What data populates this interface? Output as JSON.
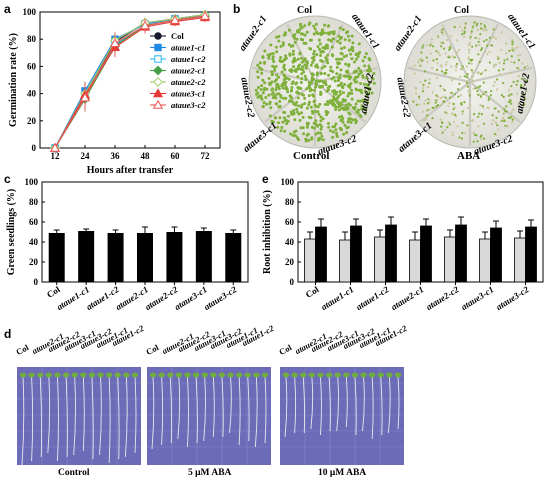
{
  "panels": {
    "a": "a",
    "b": "b",
    "c": "c",
    "d": "d",
    "e": "e"
  },
  "lines": [
    "Col",
    "ataue1-c1",
    "ataue1-c2",
    "ataue2-c1",
    "ataue2-c2",
    "ataue3-c1",
    "ataue3-c2"
  ],
  "colors": {
    "Col": "#1a1a2e",
    "ataue1-c1": "#1e88e5",
    "ataue1-c2": "#29b6f6",
    "ataue2-c1": "#43a047",
    "ataue2-c2": "#9ccc65",
    "ataue3-c1": "#e53935",
    "ataue3-c2": "#ef5350",
    "bar_light": "#d9d9d9",
    "bar_dark": "#000000",
    "plate_bg": "#f2f2ee",
    "plate_green": "#7fb03a",
    "gel_bg": "#6b6bb8"
  },
  "chart_data": [
    {
      "type": "line",
      "panel": "a",
      "xlabel": "Hours after transfer",
      "ylabel": "Germination rate (%)",
      "x": [
        12,
        24,
        36,
        48,
        60,
        72
      ],
      "ylim": [
        0,
        100
      ],
      "yticks": [
        0,
        20,
        40,
        60,
        80,
        100
      ],
      "series": [
        {
          "name": "Col",
          "values": [
            0,
            40,
            78,
            92,
            95,
            98
          ],
          "marker": "circle-filled"
        },
        {
          "name": "ataue1-c1",
          "values": [
            0,
            42,
            80,
            91,
            95,
            97
          ],
          "marker": "square-filled"
        },
        {
          "name": "ataue1-c2",
          "values": [
            0,
            38,
            76,
            90,
            94,
            97
          ],
          "marker": "square-open"
        },
        {
          "name": "ataue2-c1",
          "values": [
            0,
            36,
            75,
            90,
            94,
            97
          ],
          "marker": "diamond-filled"
        },
        {
          "name": "ataue2-c2",
          "values": [
            0,
            40,
            79,
            92,
            95,
            98
          ],
          "marker": "diamond-open"
        },
        {
          "name": "ataue3-c1",
          "values": [
            0,
            39,
            74,
            89,
            93,
            96
          ],
          "marker": "triangle-filled"
        },
        {
          "name": "ataue3-c2",
          "values": [
            0,
            37,
            77,
            90,
            94,
            97
          ],
          "marker": "triangle-open"
        }
      ],
      "legend": "bottom-right"
    },
    {
      "type": "bar",
      "panel": "c",
      "ylabel": "Green seedlings (%)",
      "categories": [
        "Col",
        "ataue1-c1",
        "ataue1-c2",
        "ataue2-c1",
        "ataue2-c2",
        "ataue3-c1",
        "ataue3-c2"
      ],
      "values": [
        49,
        51,
        49,
        49,
        50,
        51,
        49
      ],
      "errors": [
        3,
        2,
        3,
        6,
        5,
        3,
        3
      ],
      "ylim": [
        0,
        100
      ],
      "yticks": [
        0,
        20,
        40,
        60,
        80,
        100
      ]
    },
    {
      "type": "bar",
      "panel": "e",
      "ylabel": "Root inhibition (%)",
      "categories": [
        "Col",
        "ataue1-c1",
        "ataue1-c2",
        "ataue2-c1",
        "ataue2-c2",
        "ataue3-c1",
        "ataue3-c2"
      ],
      "series": [
        {
          "values": [
            43,
            42,
            45,
            42,
            45,
            43,
            44
          ],
          "errors": [
            7,
            8,
            7,
            8,
            7,
            7,
            7
          ]
        },
        {
          "values": [
            55,
            56,
            57,
            56,
            57,
            54,
            55
          ],
          "errors": [
            8,
            7,
            8,
            7,
            8,
            7,
            7
          ]
        }
      ],
      "ylim": [
        0,
        100
      ],
      "yticks": [
        0,
        20,
        40,
        60,
        80,
        100
      ]
    }
  ],
  "plates": {
    "control": {
      "caption": "Control",
      "labels": [
        "Col",
        "ataue1-c1",
        "ataue1-c2",
        "ataue2-c2",
        "ataue2-c1",
        "ataue3-c1",
        "ataue3-c2"
      ]
    },
    "aba": {
      "caption": "ABA",
      "labels": [
        "Col",
        "ataue1-c1",
        "ataue1-c2",
        "ataue2-c2",
        "ataue2-c1",
        "ataue3-c1",
        "ataue3-c2"
      ]
    }
  },
  "gels": [
    {
      "caption": "Control"
    },
    {
      "caption": "5 μM ABA"
    },
    {
      "caption": "10 μM ABA"
    }
  ],
  "gel_labels": [
    "Col",
    "ataue2-c1",
    "ataue2-c2",
    "ataue3-c1",
    "ataue3-c2",
    "ataue1-c1",
    "ataue1-c2"
  ]
}
